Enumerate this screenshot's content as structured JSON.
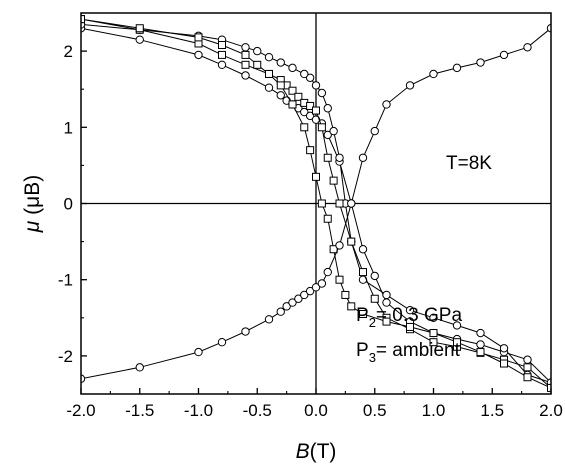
{
  "chart_data": {
    "type": "scatter",
    "title": "",
    "xlabel": {
      "var": "B",
      "unit": "(T)"
    },
    "ylabel": {
      "var": "μ",
      "unit": " (μB)"
    },
    "xlim": [
      -2.0,
      2.0
    ],
    "ylim": [
      -2.5,
      2.5
    ],
    "x_ticks": [
      -2.0,
      -1.5,
      -1.0,
      -0.5,
      0.0,
      0.5,
      1.0,
      1.5,
      2.0
    ],
    "x_tick_labels": [
      "-2.0",
      "-1.5",
      "-1.0",
      "-0.5",
      "0.0",
      "0.5",
      "1.0",
      "1.5",
      "2.0"
    ],
    "y_ticks": [
      -2,
      -1,
      0,
      1,
      2
    ],
    "y_tick_labels": [
      "-2",
      "-1",
      "0",
      "1",
      "2"
    ],
    "grid": false,
    "zero_lines": true,
    "annotations": {
      "temperature": "T=8K",
      "p2_label": "P",
      "p2_sub": "2",
      "p2_value": "= 0.3   GPa",
      "p3_label": "P",
      "p3_sub": "3",
      "p3_value": "= ambient"
    },
    "series": [
      {
        "marker": "circle",
        "x": [
          -2.0,
          -1.5,
          -1.0,
          -0.8,
          -0.6,
          -0.4,
          -0.3,
          -0.25,
          -0.2,
          -0.15,
          -0.1,
          -0.05,
          0.0,
          0.05,
          0.1,
          0.2,
          0.3,
          0.4,
          0.5,
          0.6,
          0.8,
          1.0,
          1.2,
          1.4,
          1.6,
          1.8,
          2.0,
          1.8,
          1.6,
          1.4,
          1.2,
          1.0,
          0.8,
          0.6,
          0.4,
          0.3,
          0.25,
          0.2,
          0.15,
          0.1,
          0.05,
          0.0,
          -0.05,
          -0.1,
          -0.2,
          -0.3,
          -0.4,
          -0.5,
          -0.6,
          -0.8,
          -1.0,
          -1.5,
          -2.0
        ],
        "y": [
          2.3,
          2.15,
          1.95,
          1.82,
          1.68,
          1.52,
          1.42,
          1.35,
          1.3,
          1.25,
          1.2,
          1.15,
          1.1,
          1.05,
          0.9,
          0.55,
          0.0,
          -0.6,
          -0.95,
          -1.3,
          -1.55,
          -1.7,
          -1.78,
          -1.85,
          -1.95,
          -2.05,
          -2.35,
          -2.25,
          -1.9,
          -1.7,
          -1.6,
          -1.5,
          -1.4,
          -1.2,
          -1.0,
          -0.5,
          0.0,
          0.6,
          0.95,
          1.25,
          1.45,
          1.55,
          1.65,
          1.7,
          1.78,
          1.85,
          1.92,
          2.0,
          2.05,
          2.15,
          2.2,
          2.28,
          2.35
        ]
      },
      {
        "marker": "square",
        "x": [
          -2.0,
          -1.5,
          -1.0,
          -0.8,
          -0.6,
          -0.4,
          -0.3,
          -0.25,
          -0.2,
          -0.15,
          -0.1,
          -0.05,
          0.0,
          0.05,
          0.1,
          0.15,
          0.2,
          0.3,
          0.4,
          0.5,
          0.6,
          0.8,
          1.0,
          1.2,
          1.4,
          1.6,
          1.8,
          2.0,
          1.8,
          1.6,
          1.4,
          1.2,
          1.0,
          0.8,
          0.6,
          0.4,
          0.3,
          0.25,
          0.2,
          0.15,
          0.1,
          0.05,
          0.0,
          -0.05,
          -0.1,
          -0.2,
          -0.3,
          -0.4,
          -0.5,
          -0.6,
          -0.8,
          -1.0,
          -1.5,
          -2.0
        ],
        "y": [
          2.42,
          2.28,
          2.1,
          1.95,
          1.82,
          1.7,
          1.62,
          1.55,
          1.48,
          1.4,
          1.32,
          1.28,
          1.22,
          1.0,
          0.6,
          0.3,
          0.0,
          -0.5,
          -0.9,
          -1.25,
          -1.5,
          -1.65,
          -1.82,
          -1.88,
          -1.96,
          -2.05,
          -2.15,
          -2.42,
          -2.28,
          -2.1,
          -1.95,
          -1.82,
          -1.7,
          -1.62,
          -1.55,
          -1.45,
          -1.35,
          -1.2,
          -1.0,
          -0.6,
          -0.2,
          0.0,
          0.35,
          0.7,
          1.0,
          1.3,
          1.55,
          1.7,
          1.82,
          1.95,
          2.08,
          2.18,
          2.3,
          2.42
        ]
      },
      {
        "marker": "circle",
        "x": [
          -2.0,
          -1.5,
          -1.0,
          -0.8,
          -0.6,
          -0.4,
          -0.3,
          -0.25,
          -0.2,
          -0.15,
          -0.1,
          -0.05,
          0.0,
          0.05,
          0.1,
          0.2,
          0.3,
          0.4,
          0.5,
          0.6,
          0.8,
          1.0,
          1.2,
          1.4,
          1.6,
          1.8,
          2.0
        ],
        "y": [
          -2.3,
          -2.15,
          -1.95,
          -1.82,
          -1.68,
          -1.52,
          -1.42,
          -1.35,
          -1.3,
          -1.25,
          -1.2,
          -1.15,
          -1.1,
          -1.05,
          -0.9,
          -0.55,
          0.0,
          0.6,
          0.95,
          1.3,
          1.55,
          1.7,
          1.78,
          1.85,
          1.95,
          2.05,
          2.3
        ]
      }
    ]
  }
}
